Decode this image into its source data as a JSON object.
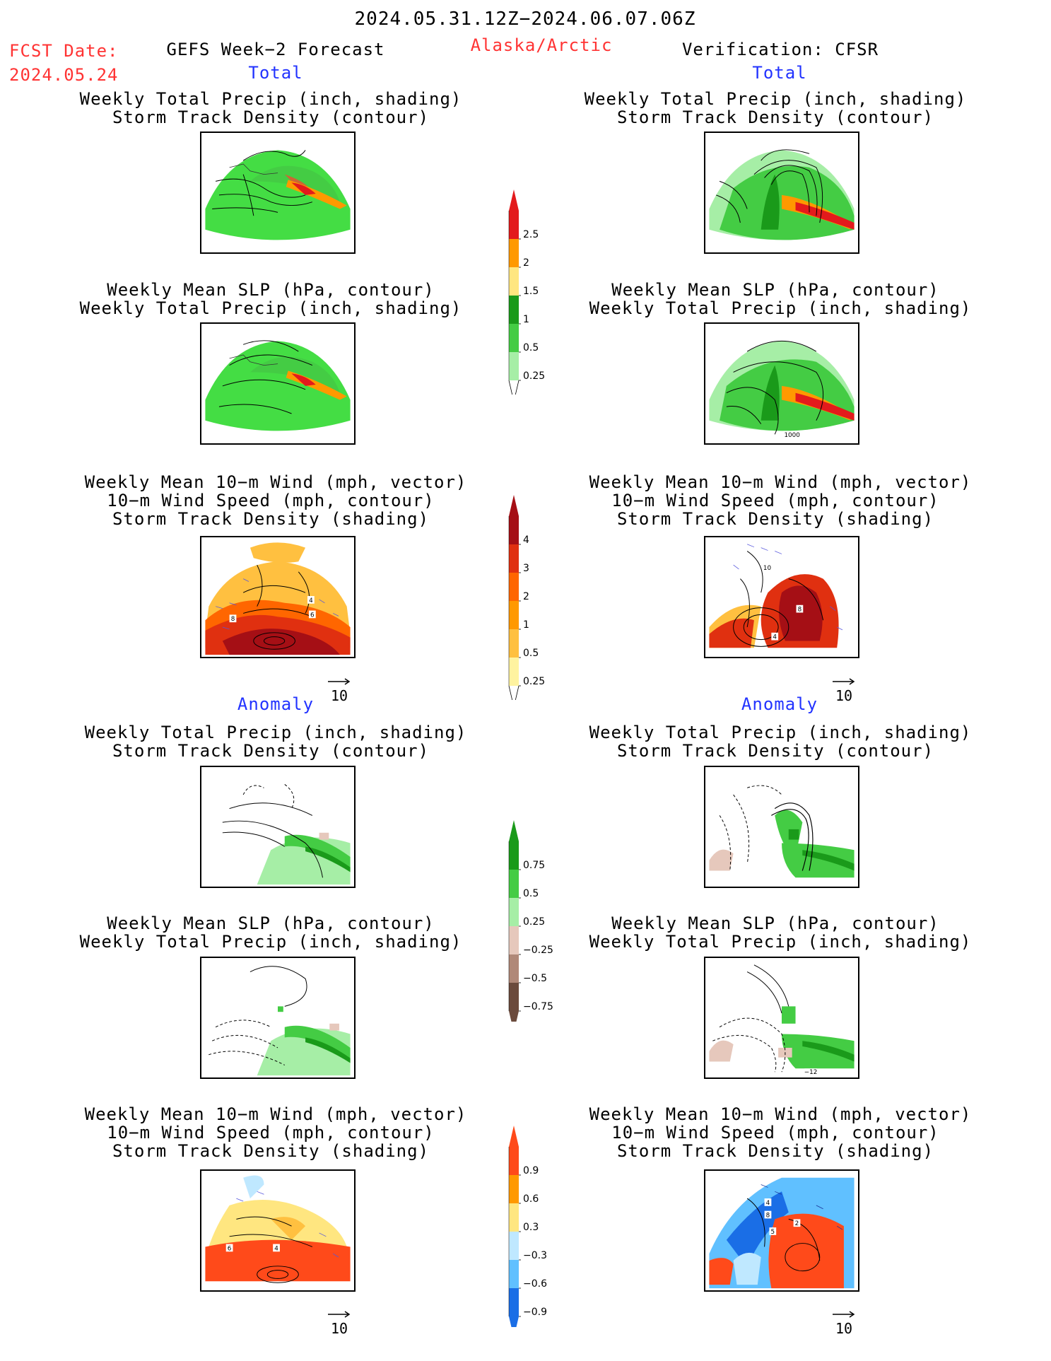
{
  "header": {
    "date_range": "2024.05.31.12Z−2024.06.07.06Z",
    "fcst_label": "FCST Date:",
    "fcst_date": "2024.05.24",
    "model_title": "GEFS Week−2 Forecast",
    "region": "Alaska/Arctic",
    "verification": "Verification: CFSR"
  },
  "sections": {
    "total": "Total",
    "anomaly": "Anomaly"
  },
  "titles": {
    "precip_track": [
      "Weekly Total Precip (inch, shading)",
      "Storm Track Density (contour)"
    ],
    "slp_precip": [
      "Weekly Mean SLP (hPa, contour)",
      "Weekly Total Precip (inch, shading)"
    ],
    "wind_track": [
      "Weekly Mean 10−m Wind (mph, vector)",
      "10−m Wind Speed (mph, contour)",
      "Storm Track Density (shading)"
    ]
  },
  "ref_vector": "10",
  "contour_labels": {
    "slp_1000": "1000",
    "slp_neg12": "−12",
    "w_4": "4",
    "w_6": "6",
    "w_8": "8",
    "w_10": "10",
    "w_2": "2",
    "w_5": "5"
  },
  "colorbars": {
    "precip_total": {
      "labels": [
        "2.5",
        "2",
        "1.5",
        "1",
        "0.5",
        "0.25"
      ],
      "colors": [
        "#e31a1c",
        "#ff9900",
        "#ffe680",
        "#1a9a1a",
        "#44cc44",
        "#a6eea6"
      ]
    },
    "storm_total": {
      "labels": [
        "4",
        "3",
        "2",
        "1",
        "0.5",
        "0.25"
      ],
      "colors": [
        "#a50f15",
        "#e03010",
        "#ff6600",
        "#ff9900",
        "#ffc040",
        "#fff3a0"
      ]
    },
    "precip_anom": {
      "labels": [
        "0.75",
        "0.5",
        "0.25",
        "−0.25",
        "−0.5",
        "−0.75"
      ],
      "colors": [
        "#1a9a1a",
        "#44cc44",
        "#a6eea6",
        "#e6c8bc",
        "#b08878",
        "#6b4a3c"
      ]
    },
    "storm_anom": {
      "labels": [
        "0.9",
        "0.6",
        "0.3",
        "−0.3",
        "−0.6",
        "−0.9"
      ],
      "colors": [
        "#ff4a1a",
        "#ff9900",
        "#ffe680",
        "#bfe8ff",
        "#60c0ff",
        "#1a6ee6"
      ]
    }
  }
}
